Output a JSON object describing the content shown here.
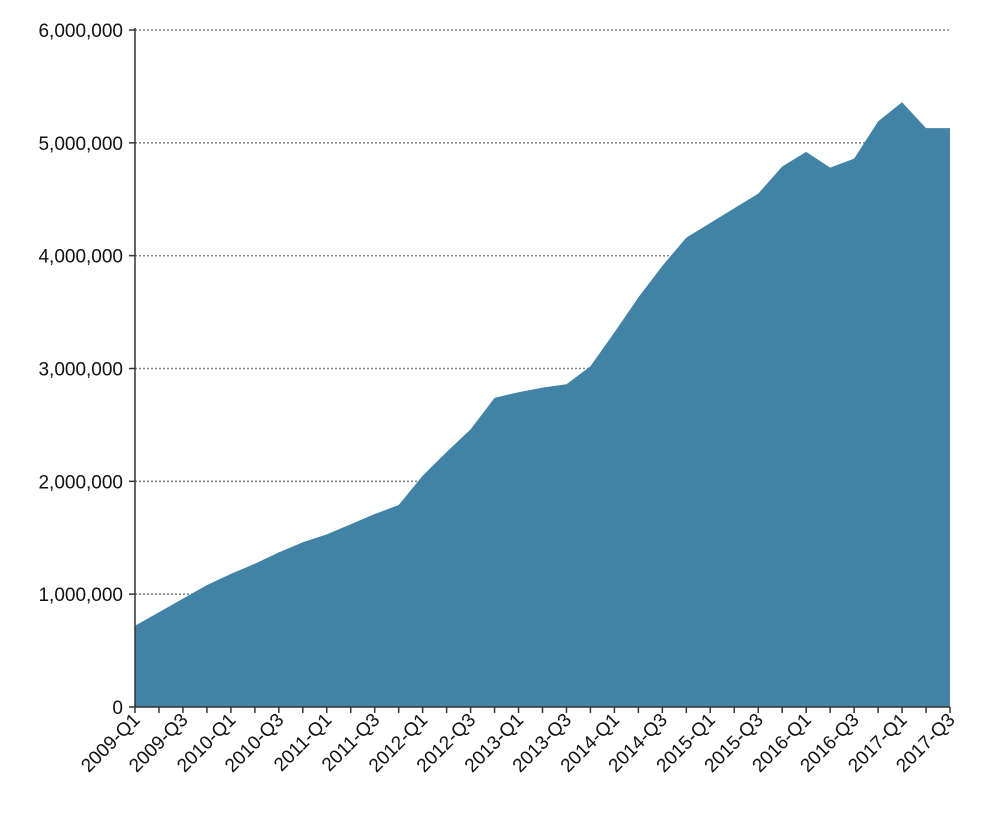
{
  "chart_data": {
    "type": "area",
    "color": "#4282a6",
    "grid": "horizontal-dotted",
    "legend": "none",
    "ylim": [
      0,
      6000000
    ],
    "yticks": [
      0,
      1000000,
      2000000,
      3000000,
      4000000,
      5000000,
      6000000
    ],
    "ytick_labels": [
      "0",
      "1,000,000",
      "2,000,000",
      "3,000,000",
      "4,000,000",
      "5,000,000",
      "6,000,000"
    ],
    "xtick_labels": [
      "2009-Q1",
      "2009-Q3",
      "2010-Q1",
      "2010-Q3",
      "2011-Q1",
      "2011-Q3",
      "2012-Q1",
      "2012-Q3",
      "2013-Q1",
      "2013-Q3",
      "2014-Q1",
      "2014-Q3",
      "2015-Q1",
      "2015-Q3",
      "2016-Q1",
      "2016-Q3",
      "2017-Q1",
      "2017-Q3"
    ],
    "categories": [
      "2009-Q1",
      "2009-Q2",
      "2009-Q3",
      "2009-Q4",
      "2010-Q1",
      "2010-Q2",
      "2010-Q3",
      "2010-Q4",
      "2011-Q1",
      "2011-Q2",
      "2011-Q3",
      "2011-Q4",
      "2012-Q1",
      "2012-Q2",
      "2012-Q3",
      "2012-Q4",
      "2013-Q1",
      "2013-Q2",
      "2013-Q3",
      "2013-Q4",
      "2014-Q1",
      "2014-Q2",
      "2014-Q3",
      "2014-Q4",
      "2015-Q1",
      "2015-Q2",
      "2015-Q3",
      "2015-Q4",
      "2016-Q1",
      "2016-Q2",
      "2016-Q3",
      "2016-Q4",
      "2017-Q1",
      "2017-Q2",
      "2017-Q3"
    ],
    "values": [
      720000,
      840000,
      960000,
      1080000,
      1180000,
      1270000,
      1370000,
      1460000,
      1530000,
      1620000,
      1710000,
      1790000,
      2050000,
      2260000,
      2460000,
      2740000,
      2790000,
      2830000,
      2860000,
      3020000,
      3320000,
      3630000,
      3910000,
      4160000,
      4290000,
      4420000,
      4550000,
      4790000,
      4920000,
      4780000,
      4860000,
      5190000,
      5360000,
      5130000,
      5130000
    ]
  }
}
